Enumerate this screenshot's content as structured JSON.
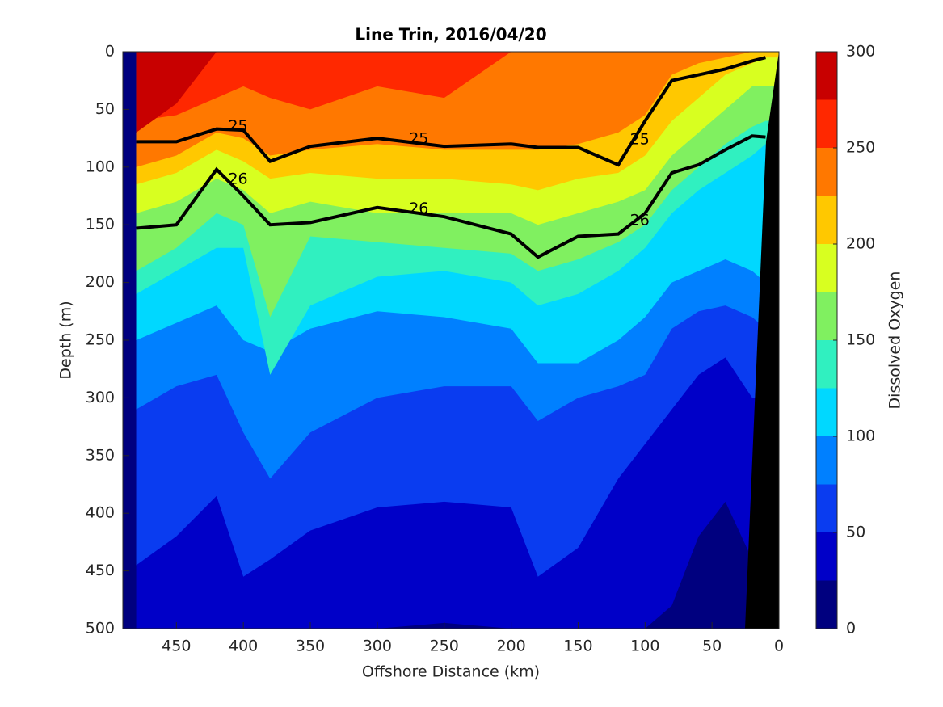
{
  "chart_data": {
    "type": "contour",
    "title": "Line Trin, 2016/04/20",
    "x_label": "Offshore Distance (km)",
    "y_label": "Depth (m)",
    "colorbar_label": "Dissolved Oxygen",
    "xlim": [
      490,
      0
    ],
    "xticks": [
      450,
      400,
      350,
      300,
      250,
      200,
      150,
      100,
      50,
      0
    ],
    "ylim": [
      0,
      500
    ],
    "yticks": [
      0,
      50,
      100,
      150,
      200,
      250,
      300,
      350,
      400,
      450,
      500
    ],
    "y_inverted": true,
    "color_levels": [
      0,
      25,
      50,
      75,
      100,
      125,
      150,
      175,
      200,
      225,
      250,
      275,
      300
    ],
    "colorbar_ticks": [
      0,
      50,
      100,
      150,
      200,
      250,
      300
    ],
    "colors": [
      "#00007f",
      "#0000c8",
      "#0a3cf0",
      "#0080ff",
      "#00d8ff",
      "#30f0c0",
      "#80f060",
      "#d8ff20",
      "#ffc800",
      "#ff7800",
      "#ff2800",
      "#c80000"
    ],
    "x": [
      480,
      450,
      420,
      400,
      380,
      350,
      300,
      250,
      200,
      180,
      150,
      120,
      100,
      80,
      60,
      40,
      20,
      10
    ],
    "boundaries": [
      [
        500,
        500,
        500,
        500,
        500,
        500,
        500,
        495,
        500,
        500,
        500,
        500,
        500,
        480,
        420,
        390,
        440,
        500
      ],
      [
        445,
        420,
        385,
        455,
        440,
        415,
        395,
        390,
        395,
        455,
        430,
        370,
        340,
        310,
        280,
        265,
        300,
        300
      ],
      [
        310,
        290,
        280,
        330,
        370,
        330,
        300,
        290,
        290,
        320,
        300,
        290,
        280,
        240,
        225,
        220,
        230,
        240
      ],
      [
        250,
        235,
        220,
        250,
        260,
        240,
        225,
        230,
        240,
        270,
        270,
        250,
        230,
        200,
        190,
        180,
        190,
        200
      ],
      [
        210,
        190,
        170,
        170,
        280,
        220,
        195,
        190,
        200,
        220,
        210,
        190,
        170,
        140,
        120,
        105,
        90,
        80
      ],
      [
        190,
        170,
        140,
        150,
        230,
        160,
        165,
        170,
        175,
        190,
        180,
        165,
        150,
        120,
        100,
        80,
        65,
        60
      ],
      [
        140,
        130,
        110,
        120,
        140,
        130,
        140,
        140,
        140,
        150,
        140,
        130,
        120,
        90,
        70,
        50,
        30,
        30
      ],
      [
        115,
        105,
        85,
        95,
        110,
        105,
        110,
        110,
        115,
        120,
        110,
        105,
        90,
        60,
        40,
        20,
        10,
        5
      ],
      [
        100,
        90,
        70,
        75,
        90,
        85,
        80,
        85,
        85,
        85,
        80,
        70,
        55,
        20,
        10,
        5,
        0,
        0
      ],
      [
        60,
        55,
        40,
        30,
        40,
        50,
        30,
        40,
        0,
        0,
        0,
        0,
        0,
        0,
        0,
        0,
        0,
        0
      ],
      [
        70,
        45,
        0,
        0,
        0,
        0,
        0,
        0,
        0,
        0,
        0,
        0,
        0,
        0,
        0,
        0,
        0,
        0
      ]
    ],
    "contours": [
      {
        "name": "25",
        "values": [
          78,
          78,
          67,
          68,
          95,
          82,
          75,
          82,
          80,
          83,
          83,
          98,
          60,
          25,
          20,
          15,
          8,
          5
        ]
      },
      {
        "name": "26",
        "values": [
          153,
          150,
          102,
          125,
          150,
          148,
          135,
          143,
          158,
          178,
          160,
          158,
          140,
          105,
          98,
          85,
          73,
          74
        ]
      }
    ]
  }
}
